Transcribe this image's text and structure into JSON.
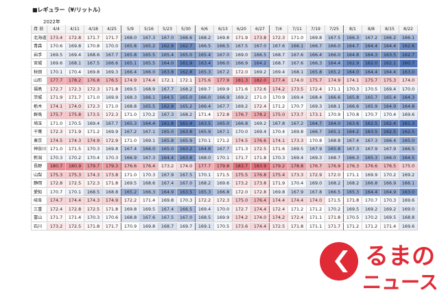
{
  "title": "■レギュラー（¥/リットル）",
  "year_label": "2022年",
  "header_first": "月 日",
  "dates": [
    "4/4",
    "4/11",
    "4/18",
    "4/25",
    "5/9",
    "5/16",
    "5/23",
    "5/30",
    "6/6",
    "6/13",
    "6/20",
    "6/27",
    "7/4",
    "7/11",
    "7/19",
    "7/25",
    "8/1",
    "8/8",
    "8/15",
    "8/22"
  ],
  "prefectures": [
    {
      "name": "北海道",
      "values": [
        "173.4",
        "172.8",
        "171.7",
        "171.7",
        "168.0",
        "167.3",
        "167.0",
        "166.6",
        "168.2",
        "169.8",
        "171.9",
        "173.8",
        "172.3",
        "171.0",
        "169.8",
        "167.5",
        "166.3",
        "167.2",
        "166.2",
        "166.1"
      ]
    },
    {
      "name": "青森",
      "values": [
        "170.6",
        "169.8",
        "170.8",
        "170.0",
        "165.8",
        "165.2",
        "162.9",
        "162.7",
        "166.5",
        "166.5",
        "167.5",
        "167.0",
        "167.6",
        "166.1",
        "166.7",
        "166.0",
        "164.7",
        "164.4",
        "164.4",
        "162.6"
      ]
    },
    {
      "name": "岩手",
      "values": [
        "169.5",
        "169.4",
        "168.6",
        "167.7",
        "165.8",
        "165.5",
        "165.4",
        "165.0",
        "165.4",
        "167.0",
        "169.0",
        "166.5",
        "168.7",
        "167.6",
        "166.4",
        "166.0",
        "164.8",
        "164.3",
        "163.5",
        "162.7"
      ]
    },
    {
      "name": "宮城",
      "values": [
        "169.6",
        "168.1",
        "167.5",
        "166.6",
        "165.1",
        "165.5",
        "164.0",
        "161.9",
        "163.4",
        "166.0",
        "166.9",
        "164.2",
        "168.7",
        "167.6",
        "166.3",
        "164.4",
        "162.9",
        "162.0",
        "162.1",
        "160.7"
      ]
    },
    {
      "name": "秋田",
      "values": [
        "170.1",
        "170.4",
        "169.8",
        "169.3",
        "166.4",
        "166.0",
        "163.8",
        "162.8",
        "165.3",
        "167.2",
        "172.0",
        "169.2",
        "169.4",
        "168.1",
        "165.8",
        "165.2",
        "164.0",
        "164.4",
        "164.4",
        "163.0"
      ]
    },
    {
      "name": "山形",
      "values": [
        "177.7",
        "178.2",
        "176.8",
        "176.5",
        "174.9",
        "174.4",
        "172.1",
        "172.1",
        "175.6",
        "177.9",
        "181.3",
        "182.0",
        "177.4",
        "174.0",
        "175.7",
        "174.9",
        "174.1",
        "175.7",
        "175.3",
        "174.0"
      ]
    },
    {
      "name": "福島",
      "values": [
        "172.7",
        "172.3",
        "172.3",
        "171.8",
        "169.5",
        "168.9",
        "167.7",
        "168.2",
        "169.7",
        "169.9",
        "171.6",
        "172.6",
        "174.2",
        "173.5",
        "172.4",
        "171.1",
        "170.3",
        "170.5",
        "169.4",
        "170.0"
      ]
    },
    {
      "name": "茨城",
      "values": [
        "171.9",
        "171.7",
        "171.0",
        "169.9",
        "168.3",
        "166.1",
        "164.5",
        "165.0",
        "166.0",
        "166.9",
        "169.2",
        "171.0",
        "170.9",
        "169.4",
        "168.4",
        "166.6",
        "165.8",
        "165.7",
        "165.4",
        "164.3"
      ]
    },
    {
      "name": "栃木",
      "values": [
        "174.1",
        "174.0",
        "172.3",
        "171.0",
        "168.8",
        "165.5",
        "162.9",
        "165.2",
        "166.4",
        "167.7",
        "169.2",
        "172.4",
        "171.2",
        "170.7",
        "169.3",
        "168.1",
        "166.6",
        "165.9",
        "164.9",
        "164.8"
      ]
    },
    {
      "name": "群馬",
      "values": [
        "175.7",
        "175.8",
        "173.5",
        "172.3",
        "171.0",
        "170.2",
        "167.3",
        "168.2",
        "171.4",
        "172.8",
        "176.7",
        "178.2",
        "175.0",
        "173.7",
        "173.1",
        "170.9",
        "170.8",
        "170.7",
        "170.4",
        "169.6"
      ]
    },
    {
      "name": "埼玉",
      "values": [
        "171.0",
        "170.5",
        "169.4",
        "167.7",
        "165.3",
        "164.4",
        "161.8",
        "161.4",
        "163.5",
        "165.0",
        "166.8",
        "169.2",
        "167.8",
        "167.2",
        "164.7",
        "164.0",
        "163.6",
        "162.5",
        "162.4",
        "161.3"
      ]
    },
    {
      "name": "千葉",
      "values": [
        "172.3",
        "171.9",
        "171.2",
        "169.9",
        "167.2",
        "167.1",
        "165.0",
        "163.8",
        "165.9",
        "167.1",
        "170.0",
        "169.4",
        "170.4",
        "169.8",
        "166.7",
        "165.1",
        "164.2",
        "163.5",
        "162.5",
        "162.5"
      ]
    },
    {
      "name": "東京",
      "values": [
        "174.5",
        "174.3",
        "174.9",
        "172.9",
        "171.0",
        "169.1",
        "165.8",
        "165.9",
        "170.1",
        "171.2",
        "174.5",
        "176.6",
        "174.1",
        "173.3",
        "170.8",
        "168.8",
        "167.4",
        "167.3",
        "166.4",
        "165.0"
      ]
    },
    {
      "name": "神奈川",
      "values": [
        "171.0",
        "171.5",
        "170.3",
        "169.8",
        "167.4",
        "166.0",
        "165.0",
        "163.2",
        "164.8",
        "167.7",
        "171.3",
        "172.5",
        "171.6",
        "169.5",
        "167.9",
        "165.8",
        "167.3",
        "167.9",
        "167.9",
        "166.5"
      ]
    },
    {
      "name": "新潟",
      "values": [
        "170.3",
        "170.2",
        "170.4",
        "170.3",
        "166.9",
        "167.3",
        "164.4",
        "163.8",
        "168.0",
        "170.1",
        "171.7",
        "171.8",
        "170.3",
        "169.4",
        "169.3",
        "168.7",
        "166.3",
        "165.3",
        "166.0",
        "164.5"
      ]
    },
    {
      "name": "長野",
      "values": [
        "180.7",
        "180.9",
        "179.7",
        "179.3",
        "176.6",
        "176.4",
        "173.2",
        "174.0",
        "177.7",
        "179.8",
        "183.7",
        "183.9",
        "179.2",
        "178.8",
        "176.7",
        "176.9",
        "176.3",
        "176.6",
        "176.5",
        "175.0"
      ]
    },
    {
      "name": "山梨",
      "values": [
        "175.3",
        "175.3",
        "174.3",
        "173.8",
        "171.0",
        "170.3",
        "167.9",
        "167.5",
        "170.1",
        "171.5",
        "175.5",
        "176.8",
        "175.4",
        "173.3",
        "172.9",
        "172.0",
        "171.1",
        "169.9",
        "170.2",
        "169.2"
      ]
    },
    {
      "name": "静岡",
      "values": [
        "172.8",
        "172.5",
        "172.3",
        "171.8",
        "169.5",
        "168.6",
        "167.4",
        "167.0",
        "168.2",
        "169.6",
        "173.2",
        "173.8",
        "171.9",
        "170.4",
        "169.0",
        "168.2",
        "168.2",
        "166.8",
        "166.9",
        "166.1"
      ]
    },
    {
      "name": "愛知",
      "values": [
        "170.7",
        "170.1",
        "168.5",
        "168.8",
        "165.2",
        "166.3",
        "164.9",
        "163.5",
        "165.3",
        "166.8",
        "172.0",
        "172.8",
        "169.8",
        "167.9",
        "167.8",
        "166.5",
        "165.3",
        "164.4",
        "164.9",
        "163.0"
      ]
    },
    {
      "name": "岐阜",
      "values": [
        "174.7",
        "174.4",
        "174.3",
        "174.9",
        "172.2",
        "171.4",
        "169.8",
        "170.3",
        "172.2",
        "172.3",
        "175.0",
        "176.4",
        "174.4",
        "174.4",
        "174.0",
        "171.5",
        "171.8",
        "170.7",
        "170.3",
        "169.6"
      ]
    },
    {
      "name": "三重",
      "values": [
        "172.4",
        "172.8",
        "172.5",
        "171.8",
        "169.8",
        "169.5",
        "167.4",
        "166.5",
        "169.4",
        "170.0",
        "172.7",
        "174.4",
        "172.4",
        "171.2",
        "171.2",
        "170.2",
        "169.5",
        "169.2",
        "169.2",
        "169.0"
      ]
    },
    {
      "name": "富山",
      "values": [
        "171.7",
        "171.4",
        "170.3",
        "170.6",
        "168.8",
        "167.6",
        "167.5",
        "167.0",
        "168.5",
        "169.9",
        "174.2",
        "174.0",
        "174.2",
        "172.4",
        "171.1",
        "171.8",
        "170.5",
        "170.2",
        "169.5",
        "168.8"
      ]
    },
    {
      "name": "石川",
      "values": [
        "173.2",
        "172.5",
        "171.8",
        "171.7",
        "170.9",
        "169.8",
        "168.7",
        "169.7",
        "169.1",
        "170.5",
        "173.6",
        "174.4",
        "172.5",
        "171.8",
        "171.1",
        "171.7",
        "171.2",
        "171.2",
        "171.4",
        "169.6"
      ]
    }
  ],
  "logo": {
    "line1": "るまの",
    "line2": "ニュース",
    "icon": "kuruma-logo-icon"
  },
  "colors": {
    "high": "#e8707a",
    "mid": "#ffffff",
    "low": "#4f74b8",
    "header": "#f4f4f4",
    "logo_red": "#e02a36"
  }
}
